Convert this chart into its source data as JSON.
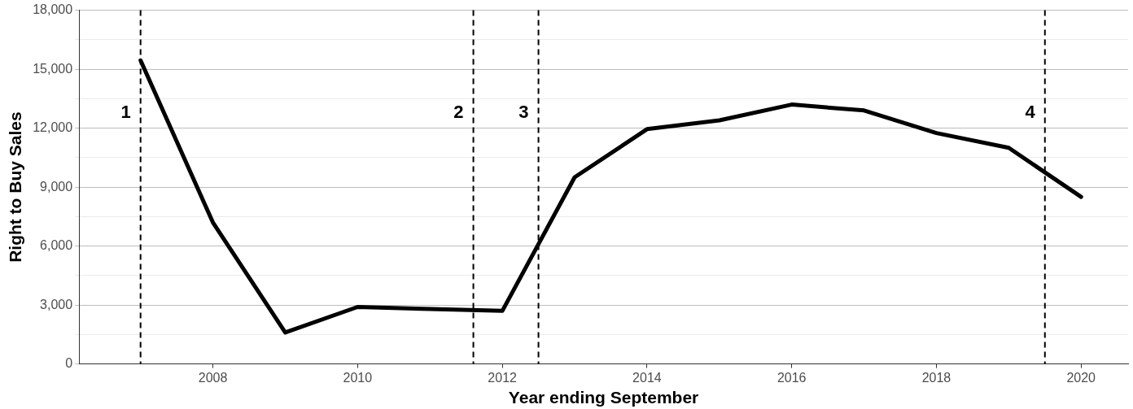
{
  "chart_data": {
    "type": "line",
    "xlabel": "Year ending September",
    "ylabel": "Right to Buy Sales",
    "x": [
      2007,
      2008,
      2009,
      2010,
      2011,
      2012,
      2013,
      2014,
      2015,
      2016,
      2017,
      2018,
      2019,
      2020
    ],
    "series": [
      {
        "color": "#000000",
        "values": [
          15450,
          7200,
          1600,
          2900,
          2800,
          2700,
          9500,
          11950,
          12400,
          13200,
          12900,
          11750,
          11000,
          8500
        ]
      }
    ],
    "xlim": [
      2006.15,
      2020.65
    ],
    "xticks": [
      2008,
      2010,
      2012,
      2014,
      2016,
      2018,
      2020
    ],
    "ylim": [
      0,
      18000
    ],
    "yticks": [
      {
        "value": 0,
        "label": "0"
      },
      {
        "value": 1500,
        "label": null
      },
      {
        "value": 3000,
        "label": "3,000"
      },
      {
        "value": 4500,
        "label": null
      },
      {
        "value": 6000,
        "label": "6,000"
      },
      {
        "value": 7500,
        "label": null
      },
      {
        "value": 9000,
        "label": "9,000"
      },
      {
        "value": 10500,
        "label": null
      },
      {
        "value": 12000,
        "label": "12,000"
      },
      {
        "value": 13500,
        "label": null
      },
      {
        "value": 15000,
        "label": "15,000"
      },
      {
        "value": 16500,
        "label": null
      },
      {
        "value": 18000,
        "label": "18,000"
      }
    ],
    "ref_lines": [
      {
        "axis": "x",
        "value": 2007,
        "line_style": "dashed",
        "color": "#000000"
      },
      {
        "axis": "x",
        "value": 2011.6,
        "line_style": "dashed",
        "color": "#000000"
      },
      {
        "axis": "x",
        "value": 2012.5,
        "line_style": "dashed",
        "color": "#000000"
      },
      {
        "axis": "x",
        "value": 2019.5,
        "line_style": "dashed",
        "color": "#000000"
      }
    ],
    "annotations": [
      {
        "text": "1",
        "x": 2007
      },
      {
        "text": "2",
        "x": 2011.6
      },
      {
        "text": "3",
        "x": 2012.5
      },
      {
        "text": "4",
        "x": 2019.5
      }
    ],
    "grid": "y",
    "legend": false,
    "marker": "none",
    "line_style": "solid"
  }
}
